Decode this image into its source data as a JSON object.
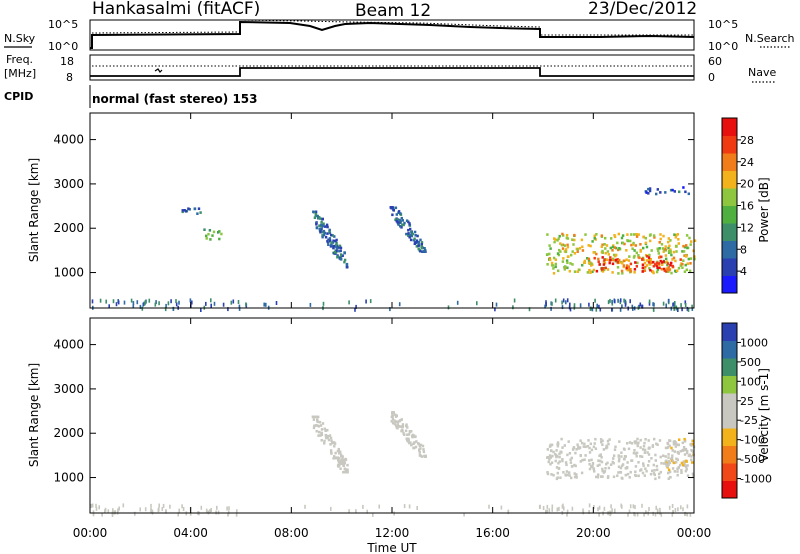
{
  "header": {
    "station": "Hankasalmi (fitACF)",
    "beam": "Beam 12",
    "date": "23/Dec/2012",
    "mode": "normal (fast stereo) 153"
  },
  "panel_labels": {
    "nsky": "N.Sky",
    "nsearch": "N.Search",
    "freq_line1": "Freq.",
    "freq_line2": "[MHz]",
    "nave": "Nave",
    "cpid": "CPID",
    "noise_tick_top": "10^5",
    "noise_tick_bottom": "10^0",
    "noise_tick_top_r": "10^5",
    "noise_tick_bottom_r": "10^0",
    "freq_tick_top": "18",
    "freq_tick_bottom": "8",
    "nave_tick_top": "60",
    "nave_tick_bottom": "0"
  },
  "colors": {
    "power_scale": [
      "#1a1aff",
      "#2a3fb0",
      "#2e6aa3",
      "#3d8f6a",
      "#4fb040",
      "#8ec640",
      "#f2b21b",
      "#f07d1a",
      "#f03a12",
      "#e8100e"
    ],
    "velocity_scale": [
      "#e8100e",
      "#f04818",
      "#f07d1a",
      "#f2b21b",
      "#c8c8c0",
      "#c8c8c0",
      "#8ec640",
      "#3d8f6a",
      "#2e6aa3",
      "#2a3fb0"
    ]
  },
  "chart_data": [
    {
      "type": "heatmap",
      "title": "Power",
      "xlabel": "Time UT",
      "ylabel": "Slant Range [km]",
      "x_ticks": [
        "00:00",
        "04:00",
        "08:00",
        "12:00",
        "16:00",
        "20:00",
        "00:00"
      ],
      "xlim_hours": [
        0,
        24
      ],
      "ylim_km": [
        200,
        4600
      ],
      "y_ticks": [
        1000,
        2000,
        3000,
        4000
      ],
      "colorbar": {
        "label": "Power [dB]",
        "ticks": [
          "28",
          "24",
          "20",
          "16",
          "12",
          "8",
          "4"
        ],
        "range": [
          0,
          30
        ]
      },
      "patches": [
        {
          "t0": 8.8,
          "t1": 10.2,
          "r0": 1150,
          "r1": 2400,
          "tilt": "diagonal",
          "value_db": 7
        },
        {
          "t0": 11.9,
          "t1": 13.3,
          "r0": 1500,
          "r1": 2500,
          "tilt": "diagonal",
          "value_db": 7
        },
        {
          "t0": 4.5,
          "t1": 5.3,
          "r0": 1750,
          "r1": 2000,
          "value_db": 14
        },
        {
          "t0": 3.6,
          "t1": 4.4,
          "r0": 2350,
          "r1": 2500,
          "value_db": 6
        },
        {
          "t0": 22.0,
          "t1": 23.8,
          "r0": 2800,
          "r1": 2950,
          "value_db": 6
        },
        {
          "t0": 18.1,
          "t1": 24.0,
          "r0": 1000,
          "r1": 1900,
          "value_db": 18
        },
        {
          "t0": 20.0,
          "t1": 23.5,
          "r0": 1050,
          "r1": 1400,
          "value_db": 26
        }
      ]
    },
    {
      "type": "heatmap",
      "title": "Velocity",
      "xlabel": "Time UT",
      "ylabel": "Slant Range [km]",
      "x_ticks": [
        "00:00",
        "04:00",
        "08:00",
        "12:00",
        "16:00",
        "20:00",
        "00:00"
      ],
      "xlim_hours": [
        0,
        24
      ],
      "ylim_km": [
        200,
        4600
      ],
      "y_ticks": [
        1000,
        2000,
        3000,
        4000
      ],
      "colorbar": {
        "label": "Velocity [m s-1]",
        "ticks": [
          "1000",
          "500",
          "100",
          "25",
          "-25",
          "-100",
          "-500",
          "-1000"
        ],
        "range": [
          -1200,
          1200
        ]
      },
      "patches": [
        {
          "t0": 8.8,
          "t1": 10.2,
          "r0": 1150,
          "r1": 2400,
          "tilt": "diagonal",
          "value_ms": 0
        },
        {
          "t0": 11.9,
          "t1": 13.3,
          "r0": 1500,
          "r1": 2500,
          "tilt": "diagonal",
          "value_ms": 0
        },
        {
          "t0": 18.1,
          "t1": 24.0,
          "r0": 1000,
          "r1": 1900,
          "value_ms": 80
        },
        {
          "t0": 22.8,
          "t1": 24.0,
          "r0": 1200,
          "r1": 1900,
          "value_ms": -200
        }
      ]
    }
  ]
}
